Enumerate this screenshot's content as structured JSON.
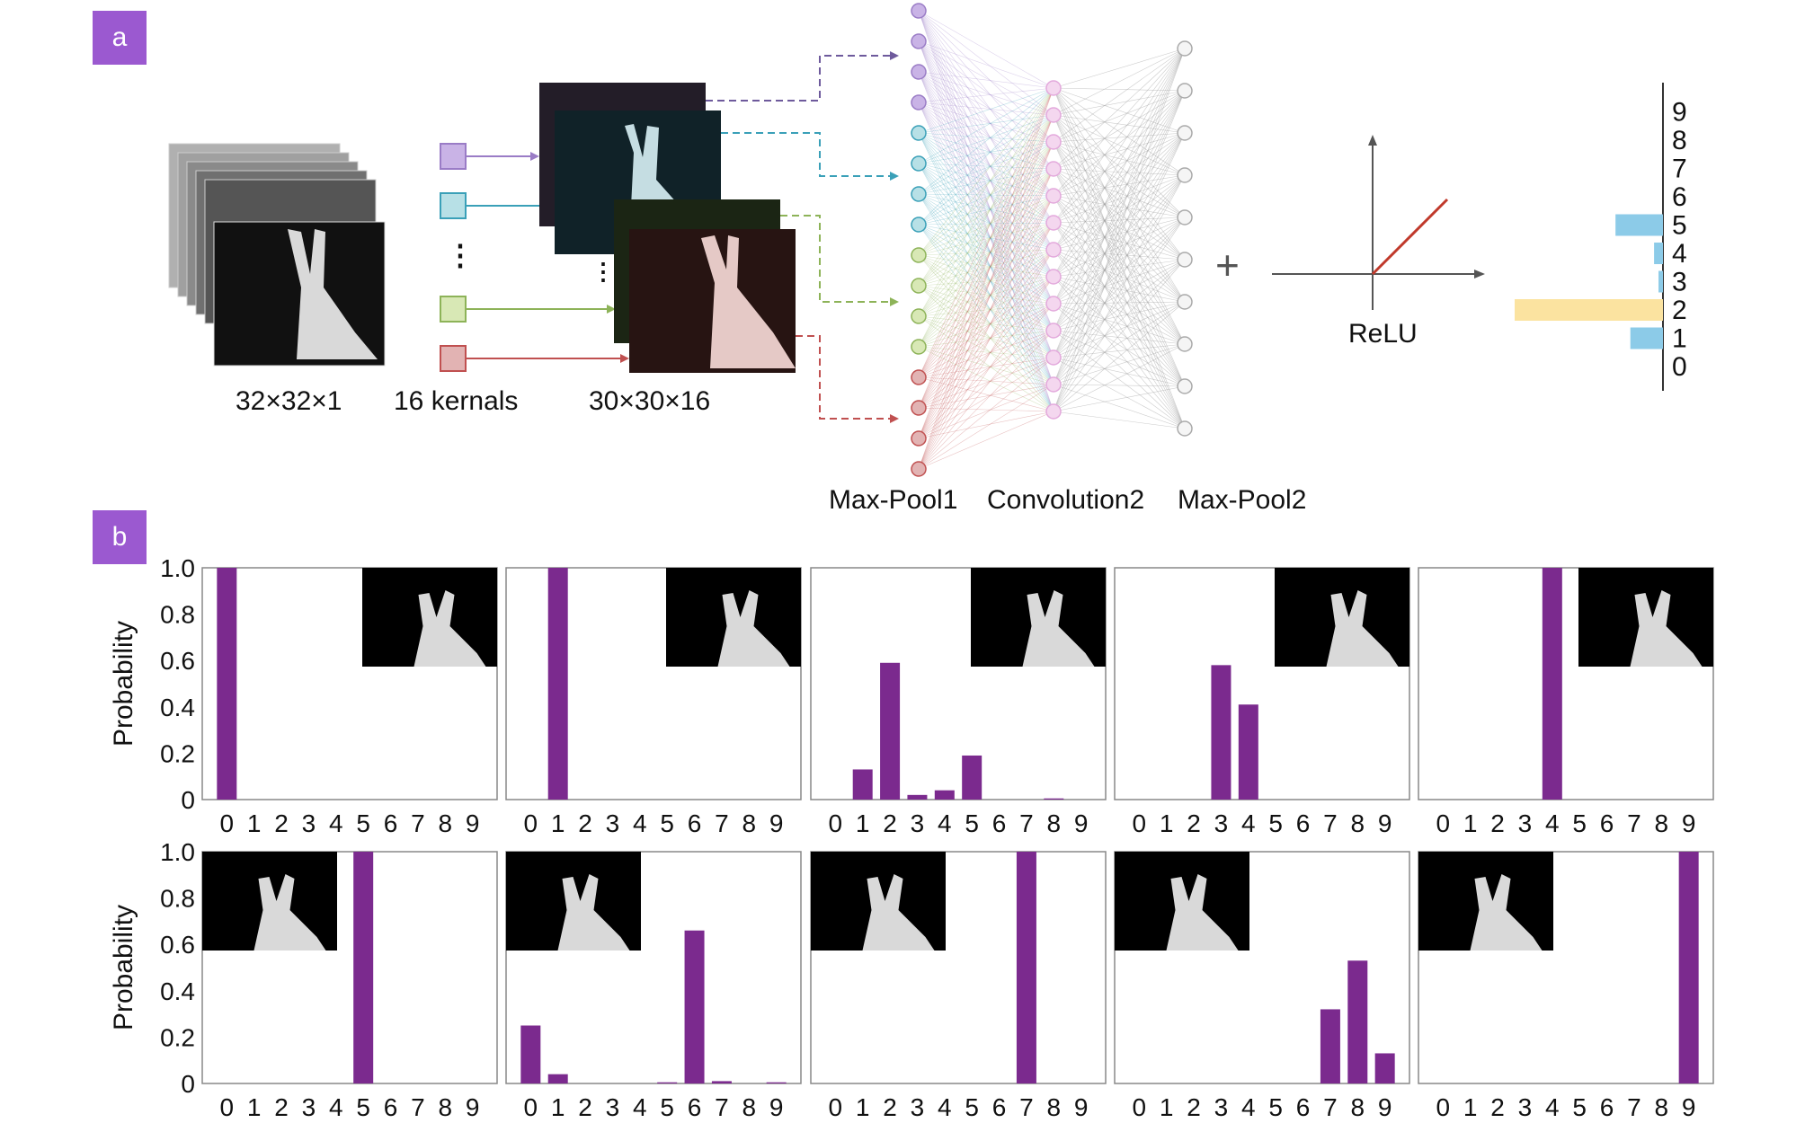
{
  "panel_a": {
    "tag": "a",
    "input_label": "32×32×1",
    "kernels_label": "16 kernals",
    "feature_label": "30×30×16",
    "maxpool1_label": "Max-Pool1",
    "conv2_label": "Convolution2",
    "maxpool2_label": "Max-Pool2",
    "plus": "+",
    "relu_label": "ReLU",
    "ellipsis": "⋮",
    "kernel_colors": [
      "#c9b3e6",
      "#b7e0e6",
      "#d8e8b5",
      "#e2b3b3"
    ],
    "kernel_borders": [
      "#9a7cc6",
      "#3aa0b8",
      "#8db358",
      "#c05050"
    ],
    "output_bars": {
      "labels": [
        "0",
        "1",
        "2",
        "3",
        "4",
        "5",
        "6",
        "7",
        "8",
        "9"
      ],
      "values": [
        0,
        0.22,
        1.0,
        0.03,
        0.06,
        0.32,
        0,
        0,
        0,
        0
      ],
      "highlight_index": 2,
      "bar_color": "#8ccbe8",
      "highlight_color": "#fbe3a0"
    }
  },
  "panel_b": {
    "tag": "b",
    "ylabel": "Probability",
    "yticks": [
      "1.0",
      "0.8",
      "0.6",
      "0.4",
      "0.2",
      "0"
    ],
    "xticks": [
      "0",
      "1",
      "2",
      "3",
      "4",
      "5",
      "6",
      "7",
      "8",
      "9"
    ],
    "bar_color": "#7b2a8e"
  },
  "chart_data": [
    {
      "type": "bar",
      "categories": [
        "0",
        "1",
        "2",
        "3",
        "4",
        "5",
        "6",
        "7",
        "8",
        "9"
      ],
      "values": [
        1.0,
        0,
        0,
        0,
        0,
        0,
        0,
        0,
        0,
        0
      ],
      "ylim": [
        0,
        1
      ],
      "ylabel": "Probability",
      "inset": "top-right"
    },
    {
      "type": "bar",
      "categories": [
        "0",
        "1",
        "2",
        "3",
        "4",
        "5",
        "6",
        "7",
        "8",
        "9"
      ],
      "values": [
        0,
        1.0,
        0,
        0,
        0,
        0,
        0,
        0,
        0,
        0
      ],
      "ylim": [
        0,
        1
      ],
      "inset": "top-right"
    },
    {
      "type": "bar",
      "categories": [
        "0",
        "1",
        "2",
        "3",
        "4",
        "5",
        "6",
        "7",
        "8",
        "9"
      ],
      "values": [
        0,
        0.13,
        0.59,
        0.02,
        0.04,
        0.19,
        0,
        0,
        0.005,
        0
      ],
      "ylim": [
        0,
        1
      ],
      "inset": "top-right"
    },
    {
      "type": "bar",
      "categories": [
        "0",
        "1",
        "2",
        "3",
        "4",
        "5",
        "6",
        "7",
        "8",
        "9"
      ],
      "values": [
        0,
        0,
        0,
        0.58,
        0.41,
        0,
        0,
        0,
        0,
        0
      ],
      "ylim": [
        0,
        1
      ],
      "inset": "top-right"
    },
    {
      "type": "bar",
      "categories": [
        "0",
        "1",
        "2",
        "3",
        "4",
        "5",
        "6",
        "7",
        "8",
        "9"
      ],
      "values": [
        0,
        0,
        0,
        0,
        1.0,
        0,
        0,
        0,
        0,
        0
      ],
      "ylim": [
        0,
        1
      ],
      "inset": "top-right"
    },
    {
      "type": "bar",
      "categories": [
        "0",
        "1",
        "2",
        "3",
        "4",
        "5",
        "6",
        "7",
        "8",
        "9"
      ],
      "values": [
        0,
        0,
        0,
        0,
        0,
        1.0,
        0,
        0,
        0,
        0
      ],
      "ylim": [
        0,
        1
      ],
      "ylabel": "Probability",
      "inset": "top-left"
    },
    {
      "type": "bar",
      "categories": [
        "0",
        "1",
        "2",
        "3",
        "4",
        "5",
        "6",
        "7",
        "8",
        "9"
      ],
      "values": [
        0.25,
        0.04,
        0,
        0,
        0,
        0.005,
        0.66,
        0.01,
        0,
        0.005
      ],
      "ylim": [
        0,
        1
      ],
      "inset": "top-left"
    },
    {
      "type": "bar",
      "categories": [
        "0",
        "1",
        "2",
        "3",
        "4",
        "5",
        "6",
        "7",
        "8",
        "9"
      ],
      "values": [
        0,
        0,
        0,
        0,
        0,
        0,
        0,
        1.0,
        0,
        0
      ],
      "ylim": [
        0,
        1
      ],
      "inset": "top-left"
    },
    {
      "type": "bar",
      "categories": [
        "0",
        "1",
        "2",
        "3",
        "4",
        "5",
        "6",
        "7",
        "8",
        "9"
      ],
      "values": [
        0,
        0,
        0,
        0,
        0,
        0,
        0,
        0.32,
        0.53,
        0.13
      ],
      "ylim": [
        0,
        1
      ],
      "inset": "top-left"
    },
    {
      "type": "bar",
      "categories": [
        "0",
        "1",
        "2",
        "3",
        "4",
        "5",
        "6",
        "7",
        "8",
        "9"
      ],
      "values": [
        0,
        0,
        0,
        0,
        0,
        0,
        0,
        0,
        0,
        1.0
      ],
      "ylim": [
        0,
        1
      ],
      "inset": "top-left"
    }
  ]
}
